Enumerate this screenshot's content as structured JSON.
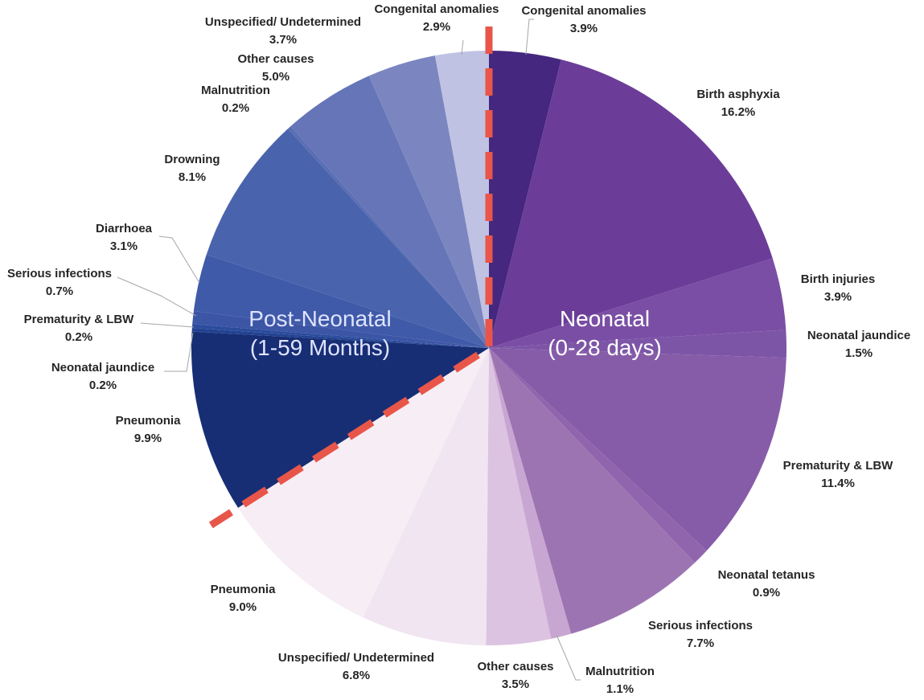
{
  "chart_data": {
    "type": "pie",
    "title": "",
    "groups": [
      {
        "name": "Neonatal\n(0-28 days)",
        "lines": [
          "Neonatal",
          "(0-28 days)"
        ],
        "color": "#ffffff"
      },
      {
        "name": "Post-Neonatal\n(1-59 Months)",
        "lines": [
          "Post-Neonatal",
          "(1-59 Months)"
        ],
        "color": "#dfe3ff"
      }
    ],
    "slices": [
      {
        "label": "Congenital anomalies",
        "value": 3.9,
        "display": "3.9%",
        "group": "Neonatal",
        "color": "#45277f"
      },
      {
        "label": "Birth asphyxia",
        "value": 16.2,
        "display": "16.2%",
        "group": "Neonatal",
        "color": "#6b3d98"
      },
      {
        "label": "Birth injuries",
        "value": 3.9,
        "display": "3.9%",
        "group": "Neonatal",
        "color": "#7a4ea4"
      },
      {
        "label": "Neonatal jaundice",
        "value": 1.5,
        "display": "1.5%",
        "group": "Neonatal",
        "color": "#7d55a7"
      },
      {
        "label": "Prematurity & LBW",
        "value": 11.4,
        "display": "11.4%",
        "group": "Neonatal",
        "color": "#865ca9"
      },
      {
        "label": "Neonatal tetanus",
        "value": 0.9,
        "display": "0.9%",
        "group": "Neonatal",
        "color": "#9065ad"
      },
      {
        "label": "Serious infections",
        "value": 7.7,
        "display": "7.7%",
        "group": "Neonatal",
        "color": "#9d74b2"
      },
      {
        "label": "Malnutrition",
        "value": 1.1,
        "display": "1.1%",
        "group": "Neonatal",
        "color": "#c8a6d2"
      },
      {
        "label": "Other causes",
        "value": 3.5,
        "display": "3.5%",
        "group": "Neonatal",
        "color": "#dcc3e1"
      },
      {
        "label": "Unspecified/ Undetermined",
        "value": 6.8,
        "display": "6.8%",
        "group": "Neonatal",
        "color": "#f0e5f1"
      },
      {
        "label": "Pneumonia",
        "value": 9.0,
        "display": "9.0%",
        "group": "Neonatal",
        "color": "#f7eef5"
      },
      {
        "label": "Pneumonia",
        "value": 9.9,
        "display": "9.9%",
        "group": "Post-Neonatal",
        "color": "#172e75"
      },
      {
        "label": "Neonatal jaundice",
        "value": 0.2,
        "display": "0.2%",
        "group": "Post-Neonatal",
        "color": "#234291"
      },
      {
        "label": "Prematurity & LBW",
        "value": 0.2,
        "display": "0.2%",
        "group": "Post-Neonatal",
        "color": "#2b4c9d"
      },
      {
        "label": "Serious infections",
        "value": 0.7,
        "display": "0.7%",
        "group": "Post-Neonatal",
        "color": "#3c55a5"
      },
      {
        "label": "Diarrhoea",
        "value": 3.1,
        "display": "3.1%",
        "group": "Post-Neonatal",
        "color": "#3f5aa8"
      },
      {
        "label": "Drowning",
        "value": 8.1,
        "display": "8.1%",
        "group": "Post-Neonatal",
        "color": "#4a63ad"
      },
      {
        "label": "Malnutrition",
        "value": 0.2,
        "display": "0.2%",
        "group": "Post-Neonatal",
        "color": "#5a6eb3"
      },
      {
        "label": "Other causes",
        "value": 5.0,
        "display": "5.0%",
        "group": "Post-Neonatal",
        "color": "#6575b8"
      },
      {
        "label": "Unspecified/ Undetermined",
        "value": 3.7,
        "display": "3.7%",
        "group": "Post-Neonatal",
        "color": "#7b86c0"
      },
      {
        "label": "Congenital anomalies",
        "value": 2.9,
        "display": "2.9%",
        "group": "Post-Neonatal",
        "color": "#bfc2e3"
      }
    ],
    "divider_color": "#e8564a",
    "legend": "none"
  }
}
